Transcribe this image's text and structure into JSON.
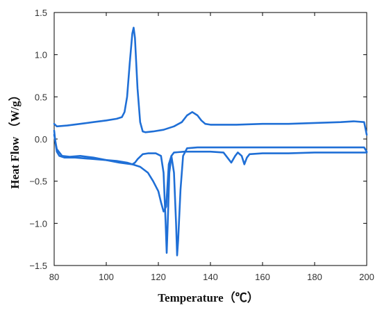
{
  "chart_data": {
    "type": "line",
    "title": "",
    "xlabel": "Temperature（℃）",
    "ylabel": "Heat Flow （W/g）",
    "xlim": [
      80,
      200
    ],
    "ylim": [
      -1.5,
      1.5
    ],
    "xticks": [
      80,
      100,
      120,
      140,
      160,
      180,
      200
    ],
    "yticks": [
      -1.5,
      -1.0,
      -0.5,
      0.0,
      0.5,
      1.0,
      1.5
    ],
    "xtick_labels": [
      "80",
      "100",
      "120",
      "140",
      "160",
      "180",
      "200"
    ],
    "ytick_labels": [
      "−1.5",
      "−1.0",
      "−0.5",
      "0.0",
      "0.5",
      "1.0",
      "1.5"
    ],
    "grid": false,
    "line_color": "#1F6FD6",
    "series": [
      {
        "values": [
          [
            80,
            0.18
          ],
          [
            81,
            0.15
          ],
          [
            85,
            0.16
          ],
          [
            90,
            0.18
          ],
          [
            95,
            0.2
          ],
          [
            100,
            0.22
          ],
          [
            104,
            0.24
          ],
          [
            106,
            0.26
          ],
          [
            107,
            0.32
          ],
          [
            108,
            0.5
          ],
          [
            109,
            0.9
          ],
          [
            110,
            1.25
          ],
          [
            110.5,
            1.32
          ],
          [
            111,
            1.2
          ],
          [
            112,
            0.6
          ],
          [
            113,
            0.2
          ],
          [
            114,
            0.09
          ],
          [
            115,
            0.08
          ],
          [
            118,
            0.09
          ],
          [
            122,
            0.11
          ],
          [
            126,
            0.15
          ],
          [
            129,
            0.2
          ],
          [
            131,
            0.28
          ],
          [
            133,
            0.32
          ],
          [
            135,
            0.28
          ],
          [
            136.5,
            0.22
          ],
          [
            138,
            0.18
          ],
          [
            140,
            0.17
          ],
          [
            150,
            0.17
          ],
          [
            160,
            0.18
          ],
          [
            170,
            0.18
          ],
          [
            180,
            0.19
          ],
          [
            190,
            0.2
          ],
          [
            195,
            0.21
          ],
          [
            199,
            0.2
          ],
          [
            200,
            0.05
          ]
        ]
      },
      {
        "values": [
          [
            80,
            0.1
          ],
          [
            80.5,
            -0.05
          ],
          [
            81,
            -0.15
          ],
          [
            82,
            -0.2
          ],
          [
            84,
            -0.22
          ],
          [
            88,
            -0.22
          ],
          [
            92,
            -0.23
          ],
          [
            96,
            -0.24
          ],
          [
            100,
            -0.25
          ],
          [
            104,
            -0.26
          ],
          [
            108,
            -0.28
          ],
          [
            110,
            -0.3
          ],
          [
            111,
            -0.28
          ],
          [
            112,
            -0.24
          ],
          [
            114,
            -0.18
          ],
          [
            116,
            -0.17
          ],
          [
            119,
            -0.17
          ],
          [
            121,
            -0.2
          ],
          [
            122,
            -0.4
          ],
          [
            122.8,
            -1.0
          ],
          [
            123.2,
            -1.35
          ],
          [
            123.6,
            -1.0
          ],
          [
            124.2,
            -0.4
          ],
          [
            125,
            -0.2
          ],
          [
            126,
            -0.16
          ],
          [
            130,
            -0.15
          ],
          [
            140,
            -0.15
          ],
          [
            145,
            -0.16
          ],
          [
            146.5,
            -0.22
          ],
          [
            148,
            -0.28
          ],
          [
            149.5,
            -0.2
          ],
          [
            150.5,
            -0.16
          ],
          [
            152,
            -0.2
          ],
          [
            153,
            -0.3
          ],
          [
            154,
            -0.22
          ],
          [
            155,
            -0.18
          ],
          [
            160,
            -0.17
          ],
          [
            170,
            -0.17
          ],
          [
            180,
            -0.16
          ],
          [
            190,
            -0.16
          ],
          [
            200,
            -0.16
          ]
        ]
      },
      {
        "values": [
          [
            80,
            0.05
          ],
          [
            81,
            -0.12
          ],
          [
            83,
            -0.2
          ],
          [
            86,
            -0.21
          ],
          [
            90,
            -0.2
          ],
          [
            95,
            -0.22
          ],
          [
            100,
            -0.25
          ],
          [
            105,
            -0.28
          ],
          [
            110,
            -0.3
          ],
          [
            113,
            -0.33
          ],
          [
            116,
            -0.4
          ],
          [
            118,
            -0.5
          ],
          [
            120,
            -0.62
          ],
          [
            121,
            -0.75
          ],
          [
            122,
            -0.86
          ],
          [
            123,
            -0.8
          ],
          [
            124,
            -0.3
          ],
          [
            125,
            -0.2
          ],
          [
            126,
            -0.4
          ],
          [
            126.8,
            -1.0
          ],
          [
            127.2,
            -1.38
          ],
          [
            127.6,
            -1.2
          ],
          [
            128.5,
            -0.6
          ],
          [
            129.5,
            -0.2
          ],
          [
            131,
            -0.11
          ],
          [
            135,
            -0.1
          ],
          [
            140,
            -0.1
          ],
          [
            150,
            -0.1
          ],
          [
            155,
            -0.1
          ],
          [
            160,
            -0.1
          ],
          [
            170,
            -0.1
          ],
          [
            180,
            -0.1
          ],
          [
            190,
            -0.1
          ],
          [
            199,
            -0.1
          ],
          [
            200,
            -0.15
          ]
        ]
      }
    ]
  }
}
